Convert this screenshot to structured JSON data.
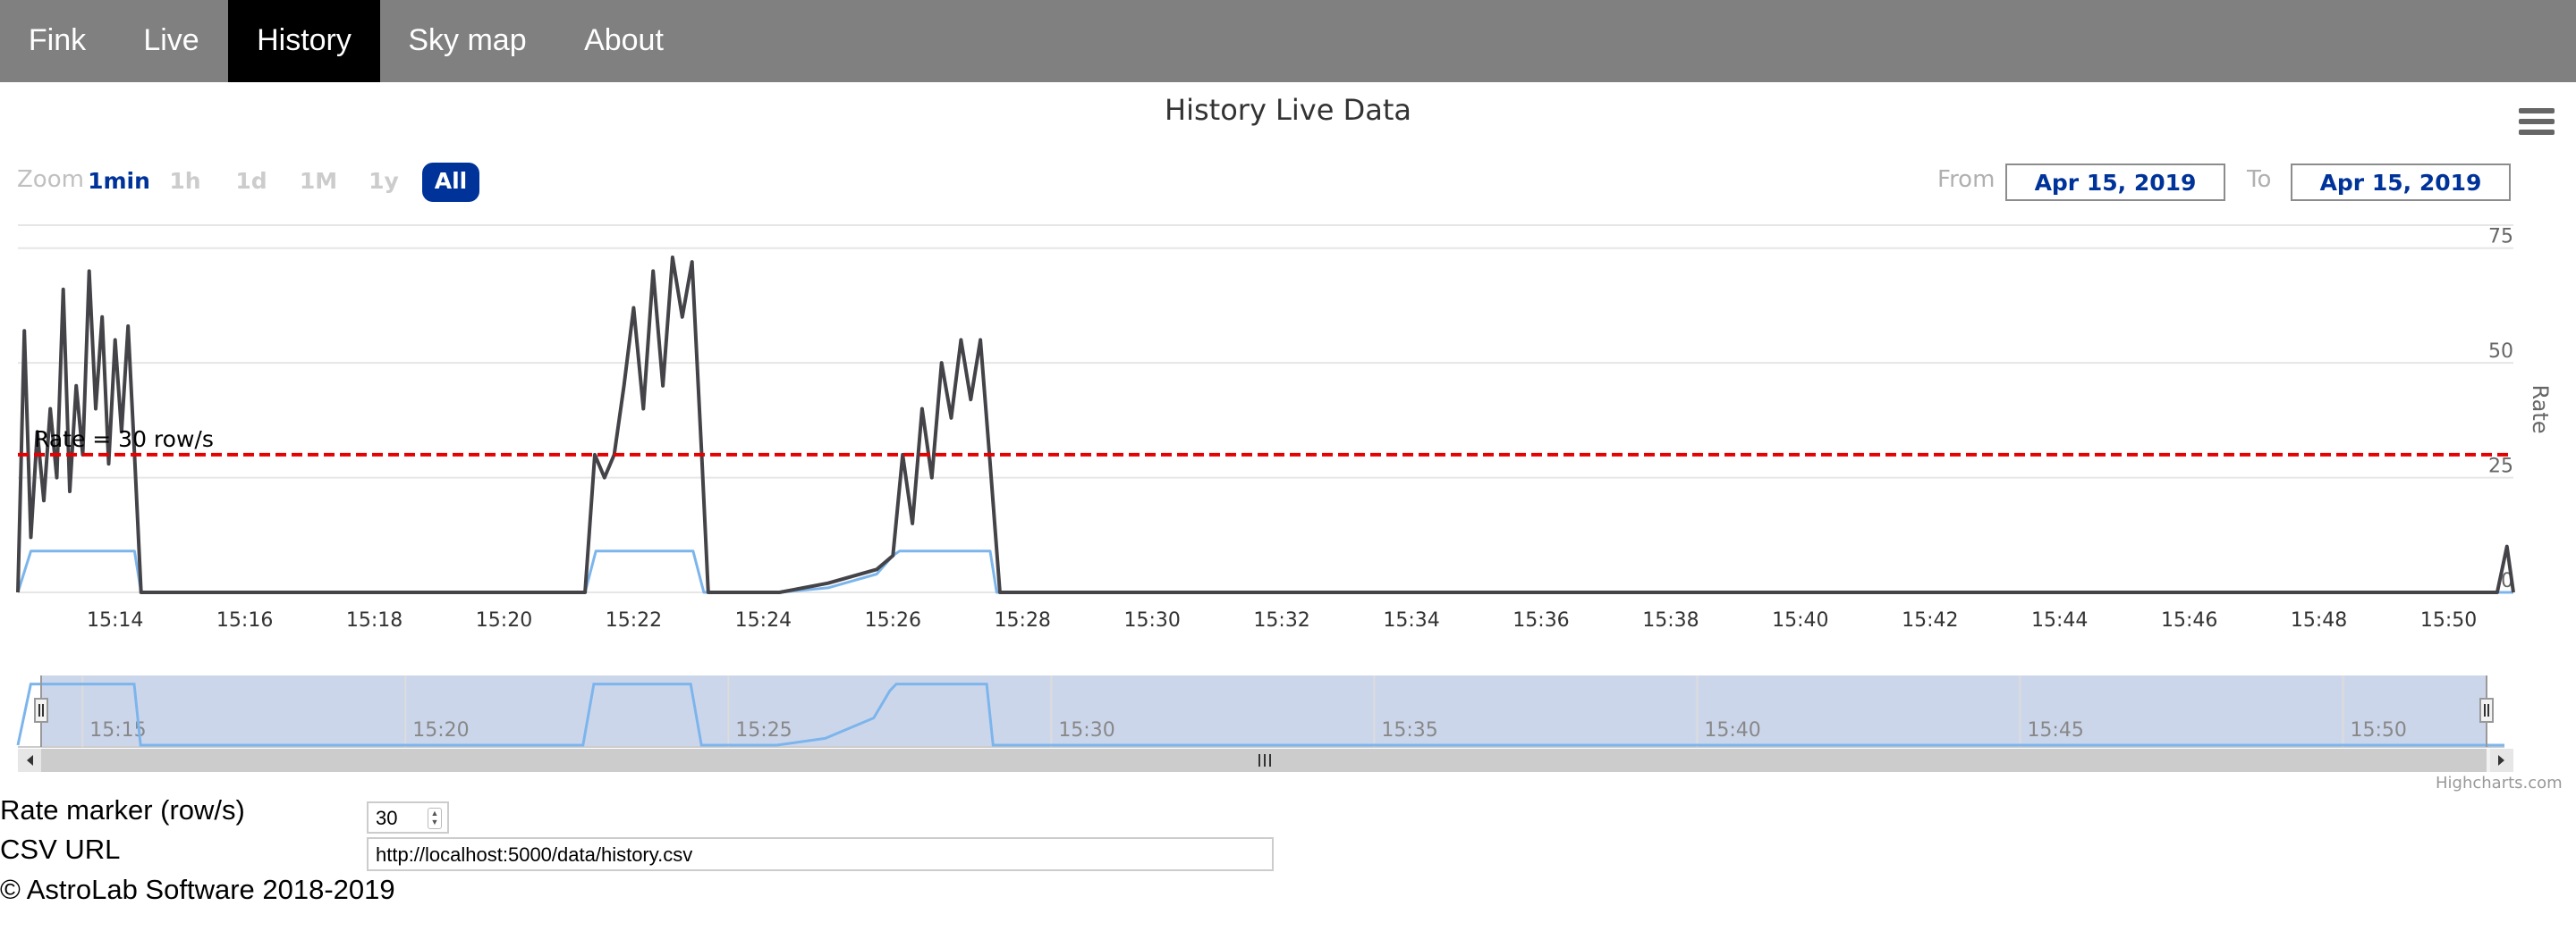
{
  "nav": {
    "items": [
      {
        "label": "Fink",
        "active": false
      },
      {
        "label": "Live",
        "active": false
      },
      {
        "label": "History",
        "active": true
      },
      {
        "label": "Sky map",
        "active": false
      },
      {
        "label": "About",
        "active": false
      }
    ]
  },
  "range_selector": {
    "zoom_label": "Zoom",
    "buttons": [
      "1min",
      "1h",
      "1d",
      "1M",
      "1y",
      "All"
    ],
    "selected": "All",
    "from_label": "From",
    "from_value": "Apr 15, 2019",
    "to_label": "To",
    "to_value": "Apr 15, 2019"
  },
  "colors": {
    "nav_bg": "#808080",
    "nav_active": "#000000",
    "rate_series": "#434348",
    "second_series": "#7cb5ec",
    "marker_line": "#e60000",
    "button_selected": "#003399",
    "navigator_fill": "#ccd6eb"
  },
  "chart_data": {
    "type": "line",
    "title": "History Live Data",
    "ylabel": "Rate",
    "ylim": [
      0,
      80
    ],
    "yticks": [
      0,
      25,
      50,
      75
    ],
    "xlim": [
      "15:12:30",
      "15:51:00"
    ],
    "xticks": [
      "15:14",
      "15:16",
      "15:18",
      "15:20",
      "15:22",
      "15:24",
      "15:26",
      "15:28",
      "15:30",
      "15:32",
      "15:34",
      "15:36",
      "15:38",
      "15:40",
      "15:42",
      "15:44",
      "15:46",
      "15:48",
      "15:50"
    ],
    "navigator_ticks": [
      "15:15",
      "15:20",
      "15:25",
      "15:30",
      "15:35",
      "15:40",
      "15:45",
      "15:50"
    ],
    "plot_line": {
      "value": 30,
      "label": "Rate = 30 row/s",
      "style": "dashed"
    },
    "series": [
      {
        "color": "#434348",
        "points": [
          [
            "15:12:30",
            0
          ],
          [
            "15:12:36",
            57
          ],
          [
            "15:12:42",
            12
          ],
          [
            "15:12:48",
            35
          ],
          [
            "15:12:54",
            20
          ],
          [
            "15:13:00",
            40
          ],
          [
            "15:13:06",
            25
          ],
          [
            "15:13:12",
            66
          ],
          [
            "15:13:18",
            22
          ],
          [
            "15:13:24",
            45
          ],
          [
            "15:13:30",
            30
          ],
          [
            "15:13:36",
            70
          ],
          [
            "15:13:42",
            40
          ],
          [
            "15:13:48",
            60
          ],
          [
            "15:13:54",
            28
          ],
          [
            "15:14:00",
            55
          ],
          [
            "15:14:06",
            35
          ],
          [
            "15:14:12",
            58
          ],
          [
            "15:14:18",
            30
          ],
          [
            "15:14:24",
            0
          ],
          [
            "15:21:15",
            0
          ],
          [
            "15:21:24",
            30
          ],
          [
            "15:21:33",
            25
          ],
          [
            "15:21:42",
            30
          ],
          [
            "15:21:51",
            45
          ],
          [
            "15:22:00",
            62
          ],
          [
            "15:22:09",
            40
          ],
          [
            "15:22:18",
            70
          ],
          [
            "15:22:27",
            45
          ],
          [
            "15:22:36",
            73
          ],
          [
            "15:22:45",
            60
          ],
          [
            "15:22:54",
            72
          ],
          [
            "15:23:03",
            30
          ],
          [
            "15:23:09",
            0
          ],
          [
            "15:24:15",
            0
          ],
          [
            "15:25:00",
            2
          ],
          [
            "15:25:45",
            5
          ],
          [
            "15:26:00",
            8
          ],
          [
            "15:26:09",
            30
          ],
          [
            "15:26:18",
            15
          ],
          [
            "15:26:27",
            40
          ],
          [
            "15:26:36",
            25
          ],
          [
            "15:26:45",
            50
          ],
          [
            "15:26:54",
            38
          ],
          [
            "15:27:03",
            55
          ],
          [
            "15:27:12",
            42
          ],
          [
            "15:27:21",
            55
          ],
          [
            "15:27:30",
            28
          ],
          [
            "15:27:39",
            0
          ],
          [
            "15:50:45",
            0
          ],
          [
            "15:50:54",
            10
          ],
          [
            "15:51:00",
            0
          ]
        ]
      },
      {
        "color": "#7cb5ec",
        "points": [
          [
            "15:12:30",
            0
          ],
          [
            "15:12:42",
            9
          ],
          [
            "15:14:18",
            9
          ],
          [
            "15:14:24",
            0
          ],
          [
            "15:21:15",
            0
          ],
          [
            "15:21:25",
            9
          ],
          [
            "15:22:55",
            9
          ],
          [
            "15:23:05",
            0
          ],
          [
            "15:24:15",
            0
          ],
          [
            "15:25:00",
            1
          ],
          [
            "15:25:45",
            4
          ],
          [
            "15:26:00",
            8
          ],
          [
            "15:26:06",
            9
          ],
          [
            "15:27:30",
            9
          ],
          [
            "15:27:36",
            0
          ],
          [
            "15:51:00",
            0
          ]
        ]
      }
    ]
  },
  "credits": "Highcharts.com",
  "form": {
    "rate_label": "Rate marker (row/s)",
    "rate_value": "30",
    "csv_label": "CSV URL",
    "csv_value": "http://localhost:5000/data/history.csv"
  },
  "footer": "© AstroLab Software 2018-2019"
}
